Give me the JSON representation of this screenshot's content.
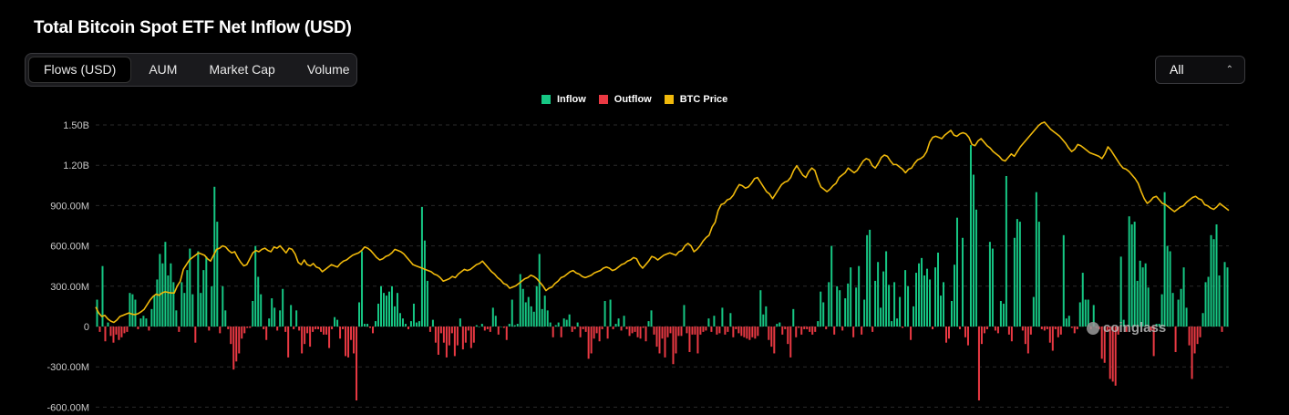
{
  "header": {
    "title": "Total Bitcoin Spot ETF Net Inflow (USD)"
  },
  "tabs": [
    {
      "label": "Flows (USD)",
      "active": true
    },
    {
      "label": "AUM",
      "active": false
    },
    {
      "label": "Market Cap",
      "active": false
    },
    {
      "label": "Volume",
      "active": false
    }
  ],
  "range_select": {
    "value": "All"
  },
  "watermark": "coinglass",
  "colors": {
    "inflow": "#16c784",
    "outflow": "#ea3943",
    "price": "#f0b90b",
    "grid": "#2a2a2a",
    "axis_text": "#c8c8c8"
  },
  "chart_data": {
    "type": "bar",
    "legend": [
      "Inflow",
      "Outflow",
      "BTC Price"
    ],
    "legend_position": "top-center",
    "grid": true,
    "ylim": [
      -600000000,
      1500000000
    ],
    "y_ticks": [
      "1.50B",
      "1.20B",
      "900.00M",
      "600.00M",
      "300.00M",
      "0",
      "-300.00M",
      "-600.00M"
    ],
    "series": [
      {
        "name": "Inflow",
        "values": [
          200,
          -40,
          450,
          -110,
          30,
          -70,
          -120,
          -60,
          -100,
          -80,
          -50,
          -40,
          250,
          240,
          200,
          -20,
          60,
          80,
          60,
          -30,
          130,
          230,
          350,
          540,
          470,
          630,
          380,
          470,
          330,
          120,
          -40,
          330,
          250,
          420,
          580,
          240,
          -120,
          560,
          250,
          420,
          520,
          -30,
          300,
          1040,
          780,
          -50,
          300,
          120,
          -20,
          -130,
          -320,
          -260,
          -200,
          -90,
          -50,
          -10,
          -10,
          190,
          600,
          370,
          240,
          -20,
          -100,
          60,
          210,
          140,
          -30,
          120,
          280,
          -40,
          -230,
          160,
          -20,
          120,
          -30,
          -200,
          -130,
          -50,
          -150,
          -40,
          -20,
          -20,
          -40,
          -60,
          -60,
          -160,
          -20,
          70,
          50,
          -90,
          -20,
          -220,
          -230,
          -100,
          -200,
          -550,
          180,
          560,
          20,
          20,
          -10,
          -50,
          40,
          170,
          300,
          250,
          230,
          260,
          300,
          150,
          250,
          100,
          60,
          20,
          -20,
          40,
          170,
          30,
          40,
          890,
          640,
          340,
          -40,
          50,
          -120,
          -210,
          -50,
          -120,
          -230,
          -140,
          -50,
          -220,
          -140,
          60,
          -170,
          -120,
          -30,
          -160,
          -120,
          10,
          0,
          20,
          -30,
          -20,
          -40,
          140,
          80,
          -60,
          0,
          -10,
          -100,
          20,
          200,
          10,
          20,
          390,
          280,
          180,
          220,
          150,
          110,
          300,
          540,
          130,
          230,
          120,
          30,
          -80,
          10,
          30,
          -80,
          60,
          50,
          90,
          -40,
          -20,
          30,
          -80,
          -20,
          -40,
          -240,
          -200,
          -90,
          -50,
          -110,
          -20,
          190,
          -90,
          200,
          -20,
          20,
          60,
          -30,
          80,
          -20,
          -70,
          -50,
          -40,
          -80,
          -90,
          -10,
          -110,
          40,
          120,
          -60,
          -150,
          -200,
          -90,
          -230,
          -80,
          -50,
          -280,
          -200,
          -70,
          -70,
          160,
          -50,
          -190,
          -60,
          -60,
          -200,
          -60,
          -40,
          -30,
          60,
          -40,
          80,
          -60,
          -50,
          140,
          -60,
          -40,
          100,
          -80,
          -20,
          -50,
          -70,
          -80,
          -90,
          -100,
          -80,
          -90,
          -70,
          270,
          90,
          150,
          -100,
          -150,
          -200,
          20,
          30,
          -60,
          -20,
          -130,
          -230,
          130,
          -80,
          -10,
          -60,
          -20,
          -20,
          -40,
          -60,
          -40,
          40,
          260,
          180,
          -20,
          330,
          600,
          -60,
          300,
          270,
          -30,
          210,
          320,
          440,
          -80,
          290,
          450,
          -60,
          200,
          680,
          720,
          -40,
          340,
          480,
          140,
          410,
          560,
          310,
          40,
          330,
          60,
          220,
          -10,
          420,
          300,
          -100,
          150,
          400,
          470,
          510,
          380,
          430,
          350,
          -20,
          440,
          550,
          230,
          330,
          -120,
          -90,
          190,
          460,
          810,
          -20,
          660,
          -80,
          -140,
          1350,
          1130,
          870,
          -550,
          -130,
          -50,
          -20,
          630,
          580,
          -30,
          -50,
          190,
          170,
          1120,
          -60,
          -110,
          660,
          800,
          780,
          -30,
          -130,
          -200,
          -60,
          220,
          1000,
          780,
          -20,
          -30,
          -20,
          -120,
          -180,
          -20,
          -80,
          -60,
          680,
          60,
          80,
          -10,
          -50,
          -20,
          180,
          400,
          200,
          200,
          -20,
          160,
          -10,
          -20,
          -240,
          -270,
          -30,
          -390,
          -410,
          -440,
          -60,
          520,
          50,
          -40,
          820,
          760,
          780,
          340,
          490,
          440,
          470,
          290,
          -30,
          -220,
          20,
          20,
          240,
          1000,
          600,
          560,
          250,
          -190,
          200,
          280,
          440,
          140,
          -140,
          -390,
          -200,
          -130,
          -80,
          100,
          330,
          370,
          680,
          650,
          760,
          380,
          -40,
          480,
          440
        ]
      },
      {
        "name": "BTC Price",
        "values": [
          46000,
          43500,
          42000,
          42500,
          41000,
          40000,
          39500,
          40500,
          42000,
          42500,
          43000,
          43500,
          43000,
          42800,
          43200,
          44000,
          45000,
          47000,
          49000,
          50500,
          51500,
          51000,
          52000,
          52500,
          52200,
          52000,
          52000,
          55000,
          57000,
          62000,
          64000,
          66000,
          67000,
          68000,
          69000,
          68500,
          68000,
          66500,
          65500,
          68000,
          70500,
          71000,
          72000,
          71500,
          70000,
          69000,
          69500,
          67000,
          65000,
          63500,
          64000,
          66500,
          69000,
          70000,
          69500,
          70500,
          71000,
          70000,
          69500,
          71500,
          71000,
          72000,
          70500,
          69000,
          71000,
          70500,
          68500,
          65000,
          64000,
          66000,
          64000,
          63500,
          64500,
          63000,
          62500,
          61000,
          62000,
          63000,
          64000,
          63500,
          63000,
          64500,
          65500,
          66000,
          67000,
          68000,
          68500,
          69000,
          70000,
          71500,
          71000,
          70000,
          68500,
          67000,
          66000,
          66500,
          67500,
          68000,
          69000,
          70500,
          70000,
          69500,
          68500,
          67000,
          65500,
          64000,
          63500,
          63000,
          62500,
          62000,
          61500,
          61000,
          60000,
          59500,
          58500,
          57000,
          57500,
          58000,
          59000,
          58500,
          60000,
          61000,
          62000,
          61500,
          62000,
          63000,
          64000,
          64500,
          65500,
          64000,
          62500,
          61000,
          60000,
          58500,
          57500,
          56000,
          55500,
          54000,
          54500,
          55000,
          56000,
          57000,
          58000,
          58500,
          59500,
          59000,
          58000,
          56500,
          55000,
          53000,
          54000,
          54500,
          56000,
          57000,
          58500,
          59000,
          60000,
          61000,
          61500,
          60500,
          60000,
          59000,
          58500,
          59000,
          59500,
          60500,
          61000,
          61500,
          62500,
          63000,
          62500,
          61500,
          62000,
          63000,
          64000,
          64500,
          65500,
          66000,
          67000,
          66500,
          64000,
          62500,
          64000,
          65500,
          67500,
          67000,
          66000,
          67000,
          68000,
          68500,
          69000,
          68500,
          68000,
          69500,
          70000,
          72000,
          73000,
          72000,
          69500,
          70500,
          72000,
          74000,
          75500,
          76500,
          80000,
          82000,
          87000,
          89500,
          90000,
          91500,
          92000,
          93500,
          96000,
          98000,
          97500,
          96500,
          97000,
          98500,
          100500,
          101000,
          99000,
          97000,
          95000,
          94000,
          92000,
          94000,
          96000,
          98000,
          99000,
          99500,
          101000,
          104000,
          106000,
          104000,
          102000,
          101000,
          103500,
          105000,
          104000,
          100000,
          97000,
          96000,
          95000,
          96000,
          97500,
          98500,
          101000,
          102000,
          103000,
          105000,
          104000,
          103000,
          104000,
          106000,
          108000,
          109000,
          108500,
          106000,
          105000,
          107000,
          109500,
          110500,
          110000,
          108000,
          106500,
          106500,
          105500,
          104500,
          103000,
          104500,
          105000,
          107000,
          108500,
          109000,
          110000,
          112000,
          116000,
          118000,
          118500,
          118000,
          117500,
          119000,
          120000,
          121000,
          119000,
          118500,
          119500,
          120000,
          119500,
          118000,
          115000,
          114500,
          116500,
          117500,
          116000,
          114500,
          113500,
          112000,
          111000,
          110000,
          108500,
          108000,
          109500,
          111000,
          110000,
          112000,
          114000,
          115500,
          117000,
          118500,
          120000,
          121500,
          123000,
          124000,
          124500,
          123000,
          121500,
          120500,
          119500,
          118500,
          117000,
          115500,
          113500,
          112000,
          113000,
          115000,
          114500,
          113500,
          112500,
          111500,
          111000,
          110500,
          110000,
          109000,
          111000,
          114000,
          112500,
          110500,
          108500,
          106500,
          105000,
          104500,
          103500,
          102000,
          100500,
          98500,
          95000,
          92000,
          90000,
          91000,
          92500,
          93000,
          91500,
          90000,
          89500,
          88500,
          87500,
          86500,
          87500,
          88500,
          89000,
          90500,
          91500,
          92500,
          93000,
          92000,
          91500,
          89500,
          89000,
          88000,
          87500,
          88500,
          90000,
          89000,
          88000,
          87000
        ]
      }
    ],
    "series_units": {
      "Inflow": "USD millions (net daily flow; negative = Outflow)",
      "BTC Price": "USD"
    }
  }
}
